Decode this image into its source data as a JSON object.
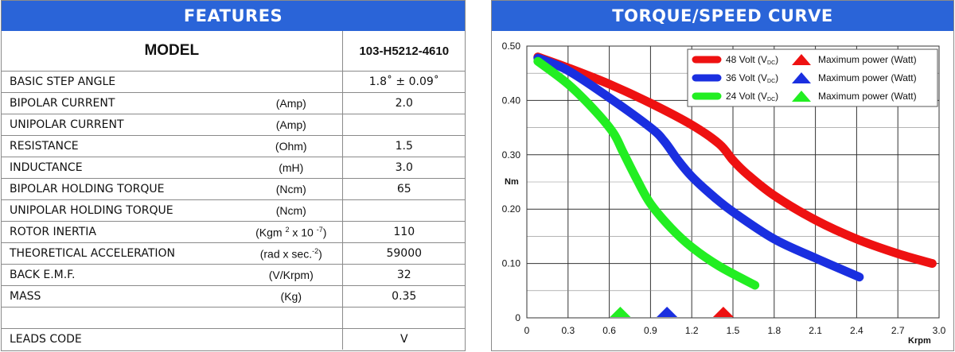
{
  "features": {
    "title": "FEATURES",
    "model_label": "MODEL",
    "model_value": "103-H5212-4610",
    "rows": [
      {
        "name": "BASIC STEP ANGLE",
        "unit": "",
        "value": "1.8˚ ± 0.09˚"
      },
      {
        "name": "BIPOLAR CURRENT",
        "unit": "(Amp)",
        "value": "2.0"
      },
      {
        "name": "UNIPOLAR CURRENT",
        "unit": "(Amp)",
        "value": ""
      },
      {
        "name": "RESISTANCE",
        "unit": "(Ohm)",
        "value": "1.5"
      },
      {
        "name": "INDUCTANCE",
        "unit": "(mH)",
        "value": "3.0"
      },
      {
        "name": "BIPOLAR HOLDING TORQUE",
        "unit": "(Ncm)",
        "value": "65"
      },
      {
        "name": "UNIPOLAR HOLDING TORQUE",
        "unit": "(Ncm)",
        "value": ""
      },
      {
        "name": "ROTOR INERTIA",
        "unit_prefix": "(Kgm ",
        "unit_sup1": "2",
        "unit_mid": " x 10 ",
        "unit_sup2": "-7",
        "unit_suffix": ")",
        "value": "110"
      },
      {
        "name": "THEORETICAL ACCELERATION",
        "unit_prefix": "(rad x sec.",
        "unit_sup1": "-2",
        "unit_mid": "",
        "unit_sup2": "",
        "unit_suffix": ")",
        "value": "59000"
      },
      {
        "name": "BACK E.M.F.",
        "unit": "(V/Krpm)",
        "value": "32"
      },
      {
        "name": "MASS",
        "unit": "(Kg)",
        "value": "0.35"
      },
      {
        "name": "",
        "unit": "",
        "value": ""
      },
      {
        "name": "LEADS CODE",
        "unit": "",
        "value": "V"
      }
    ]
  },
  "chart_panel": {
    "title": "TORQUE/SPEED CURVE"
  },
  "chart_data": {
    "type": "line",
    "title": "TORQUE/SPEED CURVE",
    "ylabel": "Nm",
    "xlabel": "Krpm",
    "xlim": [
      0,
      3.0
    ],
    "ylim": [
      0,
      0.5
    ],
    "x_ticks": [
      "0",
      "0.3",
      "0.6",
      "0.9",
      "1.2",
      "1.5",
      "1.8",
      "2.1",
      "2.4",
      "2.7",
      "3.0"
    ],
    "y_ticks": [
      "0",
      "0.10",
      "0.20",
      "0.30",
      "0.40",
      "0.50"
    ],
    "grid": true,
    "legend_position": "top-right",
    "series": [
      {
        "name": "48 Volt (VDC)",
        "label_main": "48 Volt (V",
        "label_sub": "DC",
        "label_end": ")",
        "color": "#ee1111",
        "x": [
          0.08,
          0.3,
          0.6,
          0.9,
          1.2,
          1.4,
          1.5,
          1.6,
          1.8,
          2.1,
          2.4,
          2.7,
          2.95
        ],
        "y": [
          0.48,
          0.46,
          0.43,
          0.395,
          0.355,
          0.32,
          0.29,
          0.265,
          0.225,
          0.18,
          0.145,
          0.118,
          0.1
        ],
        "max_power_x": 1.43
      },
      {
        "name": "36 Volt (VDC)",
        "label_main": "36 Volt (V",
        "label_sub": "DC",
        "label_end": ")",
        "color": "#1a2fe0",
        "x": [
          0.08,
          0.3,
          0.6,
          0.9,
          1.0,
          1.1,
          1.2,
          1.35,
          1.5,
          1.8,
          2.1,
          2.42
        ],
        "y": [
          0.478,
          0.455,
          0.405,
          0.35,
          0.325,
          0.29,
          0.26,
          0.225,
          0.195,
          0.145,
          0.11,
          0.075
        ],
        "max_power_x": 1.02
      },
      {
        "name": "24 Volt (VDC)",
        "label_main": "24 Volt (V",
        "label_sub": "DC",
        "label_end": ")",
        "color": "#22ee22",
        "x": [
          0.08,
          0.3,
          0.5,
          0.63,
          0.7,
          0.8,
          0.9,
          1.05,
          1.2,
          1.4,
          1.66
        ],
        "y": [
          0.472,
          0.43,
          0.38,
          0.34,
          0.305,
          0.255,
          0.21,
          0.165,
          0.13,
          0.095,
          0.06
        ],
        "max_power_x": 0.68
      }
    ],
    "max_power_label": "Maximum power (Watt)"
  }
}
